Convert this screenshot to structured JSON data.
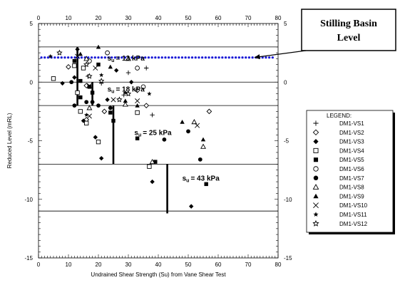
{
  "chart_data": {
    "type": "scatter",
    "title": "",
    "xlabel": "Undrained Shear Strength (Su) from Vane Shear Test",
    "ylabel": "Reduced Level (mRL)",
    "xlim": [
      0,
      80
    ],
    "ylim": [
      -15,
      5
    ],
    "x_ticks": [
      0,
      10,
      20,
      30,
      40,
      50,
      60,
      70,
      80
    ],
    "y_ticks_left": [
      5,
      0,
      -5,
      -10,
      -15
    ],
    "y_ticks_right": [
      5,
      0,
      -5,
      -10,
      -15
    ],
    "grid": false,
    "horizontal_lines": [
      3,
      0,
      -2,
      -7,
      -11
    ],
    "stilling_basin_level": 2.1,
    "callout": {
      "line1": "Stilling Basin",
      "line2": "Level",
      "arrow_target": [
        72,
        2.1
      ]
    },
    "legend": {
      "title": "LEGEND:",
      "placement": "right"
    },
    "strength_segments": [
      {
        "label_prefix": "s",
        "label_sub": "u",
        "label_value": "= 13 kPa",
        "x": 13,
        "y_top": 3.0,
        "y_bottom": -2.0,
        "label_at": [
          23,
          1.85
        ]
      },
      {
        "label_prefix": "s",
        "label_sub": "u",
        "label_value": "= 18 kPa",
        "x": 18,
        "y_top": 0.0,
        "y_bottom": -2.0,
        "label_at": [
          23,
          -0.8
        ]
      },
      {
        "label_prefix": "s",
        "label_sub": "u",
        "label_value": "= 25 kPa",
        "x": 25,
        "y_top": -2.0,
        "y_bottom": -7.0,
        "label_at": [
          32,
          -4.5
        ]
      },
      {
        "label_prefix": "s",
        "label_sub": "u",
        "label_value": "= 43 kPa",
        "x": 43,
        "y_top": -7.0,
        "y_bottom": -11.2,
        "label_at": [
          48,
          -8.4
        ]
      }
    ],
    "series": [
      {
        "name": "DM1-VS1",
        "marker": "plus",
        "points": [
          [
            16.5,
            0.5
          ],
          [
            21,
            -0.1
          ],
          [
            28.5,
            -1.1
          ],
          [
            30,
            0.8
          ],
          [
            36,
            1.2
          ],
          [
            38,
            -2.8
          ]
        ]
      },
      {
        "name": "DM1-VS2",
        "marker": "diamond-open",
        "points": [
          [
            10,
            1.3
          ],
          [
            16,
            -0.3
          ],
          [
            16,
            -3.2
          ],
          [
            22,
            -2.5
          ],
          [
            33,
            -0.7
          ],
          [
            36,
            -2.0
          ],
          [
            57,
            -2.5
          ]
        ]
      },
      {
        "name": "DM1-VS3",
        "marker": "diamond-filled",
        "points": [
          [
            8,
            -0.1
          ],
          [
            12,
            0.4
          ],
          [
            13,
            2.8
          ],
          [
            15,
            -3.3
          ],
          [
            19,
            -4.7
          ],
          [
            21,
            -6.5
          ],
          [
            23,
            -1.5
          ],
          [
            26,
            1.0
          ],
          [
            31,
            0.0
          ],
          [
            38,
            -8.5
          ],
          [
            51,
            -10.6
          ]
        ]
      },
      {
        "name": "DM1-VS4",
        "marker": "square-open",
        "points": [
          [
            5,
            0.3
          ],
          [
            12,
            1.4
          ],
          [
            13,
            -0.9
          ],
          [
            14,
            -2.5
          ],
          [
            15,
            1.2
          ],
          [
            16,
            -3.5
          ],
          [
            20,
            -5.1
          ],
          [
            33,
            -2.6
          ],
          [
            37,
            -7.2
          ]
        ]
      },
      {
        "name": "DM1-VS5",
        "marker": "square-filled",
        "points": [
          [
            12,
            1.8
          ],
          [
            14,
            0.1
          ],
          [
            14,
            -1.3
          ],
          [
            17,
            -0.4
          ],
          [
            18,
            -0.9
          ],
          [
            20,
            1.5
          ],
          [
            24,
            -2.6
          ],
          [
            25,
            -3.3
          ],
          [
            33,
            -4.8
          ],
          [
            39,
            -6.8
          ],
          [
            56,
            -8.7
          ]
        ]
      },
      {
        "name": "DM1-VS6",
        "marker": "circle-open",
        "points": [
          [
            17,
            1.8
          ],
          [
            23,
            2.5
          ],
          [
            33,
            1.2
          ],
          [
            35,
            -0.4
          ]
        ]
      },
      {
        "name": "DM1-VS7",
        "marker": "circle-filled",
        "points": [
          [
            11,
            0.0
          ],
          [
            12,
            -2.0
          ],
          [
            16,
            -1.7
          ],
          [
            18,
            -1.7
          ],
          [
            20,
            -2.0
          ],
          [
            24,
            -2.2
          ],
          [
            42,
            -4.9
          ],
          [
            50,
            -4.2
          ],
          [
            54,
            -6.6
          ]
        ]
      },
      {
        "name": "DM1-VS8",
        "marker": "triangle-open",
        "points": [
          [
            16,
            2.0
          ],
          [
            17,
            -2.2
          ],
          [
            29,
            -1.9
          ],
          [
            30,
            2.0
          ],
          [
            38,
            -6.8
          ],
          [
            52,
            -3.4
          ],
          [
            55,
            -5.5
          ]
        ]
      },
      {
        "name": "DM1-VS9",
        "marker": "triangle-filled",
        "points": [
          [
            14,
            2.4
          ],
          [
            20,
            3.0
          ],
          [
            24,
            1.3
          ],
          [
            29,
            -1.6
          ],
          [
            33,
            -2.0
          ],
          [
            48,
            -3.4
          ],
          [
            55,
            -4.9
          ]
        ]
      },
      {
        "name": "DM1-VS10",
        "marker": "x",
        "points": [
          [
            13,
            2.2
          ],
          [
            17,
            -0.3
          ],
          [
            17,
            -2.9
          ],
          [
            19,
            1.2
          ],
          [
            25,
            -1.5
          ],
          [
            33,
            -1.6
          ],
          [
            53,
            -3.7
          ]
        ]
      },
      {
        "name": "DM1-VS11",
        "marker": "star",
        "points": [
          [
            4,
            2.2
          ],
          [
            16,
            -2.8
          ],
          [
            21,
            0.6
          ],
          [
            29,
            -0.9
          ],
          [
            37,
            -1.0
          ]
        ]
      },
      {
        "name": "DM1-VS12",
        "marker": "star-open",
        "points": [
          [
            7,
            2.5
          ],
          [
            16,
            1.5
          ],
          [
            17,
            0.5
          ],
          [
            21,
            0.1
          ],
          [
            27,
            -1.5
          ],
          [
            30,
            -1.0
          ]
        ]
      }
    ]
  }
}
